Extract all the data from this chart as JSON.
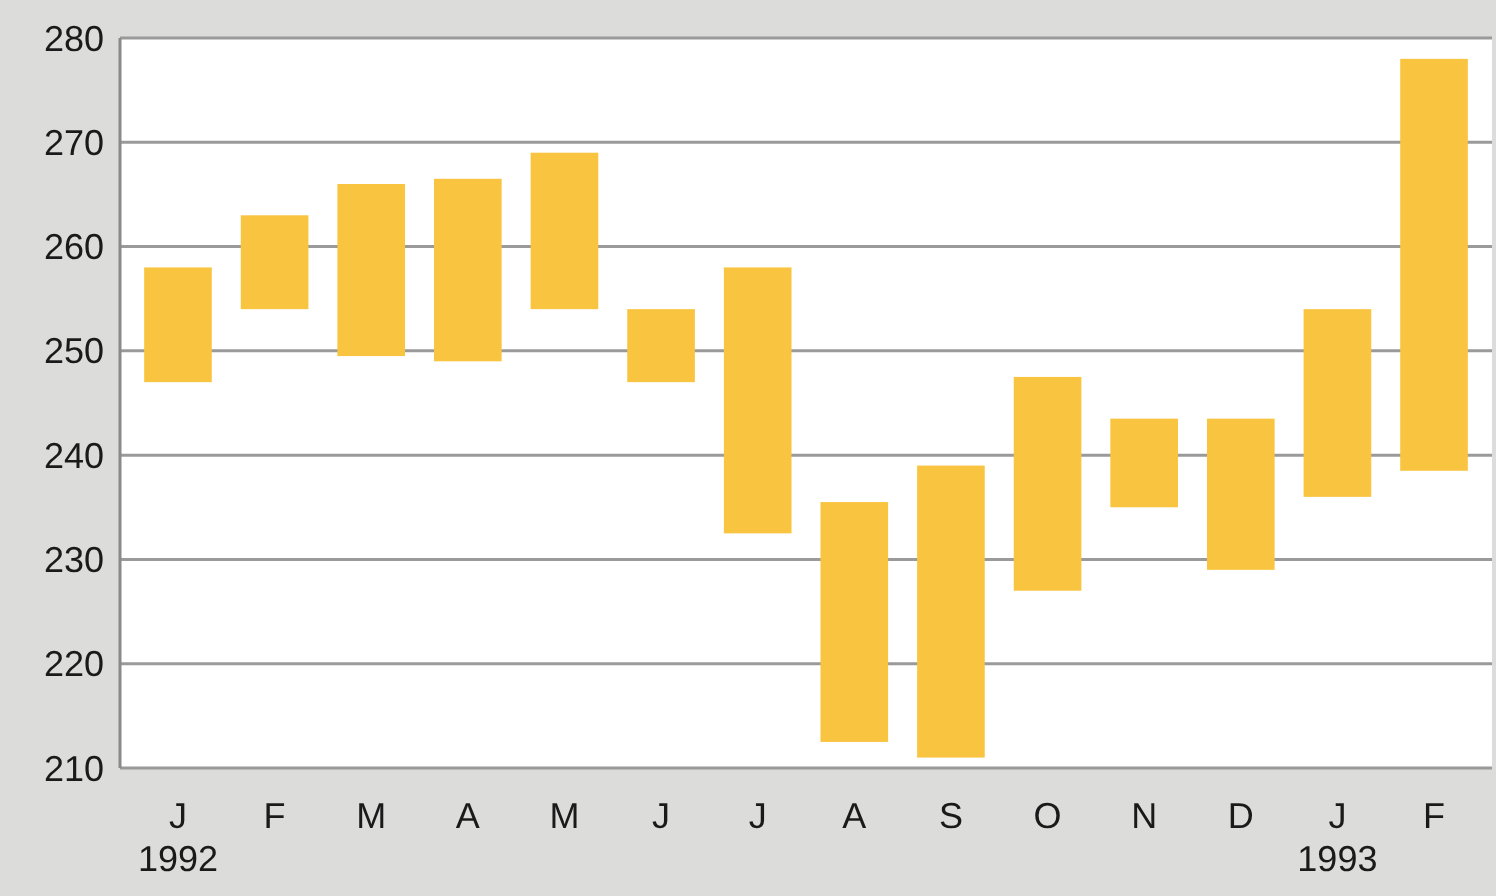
{
  "chart_data": {
    "type": "bar",
    "categories": [
      "J\n1992",
      "F",
      "M",
      "A",
      "M",
      "J",
      "J",
      "A",
      "S",
      "O",
      "N",
      "D",
      "J\n1993",
      "F"
    ],
    "base": [
      247,
      254,
      249.5,
      249,
      254,
      247,
      232.5,
      212.5,
      211,
      227,
      235,
      229,
      236,
      238.5
    ],
    "values": [
      11,
      9,
      16.5,
      17.5,
      15,
      7,
      25.5,
      23,
      28,
      20.5,
      8.5,
      14.5,
      18,
      39.5
    ],
    "color": "#f9c440",
    "ylim": [
      210,
      280
    ],
    "yticks": [
      210,
      220,
      230,
      240,
      250,
      260,
      270,
      280
    ],
    "grid": "y"
  }
}
